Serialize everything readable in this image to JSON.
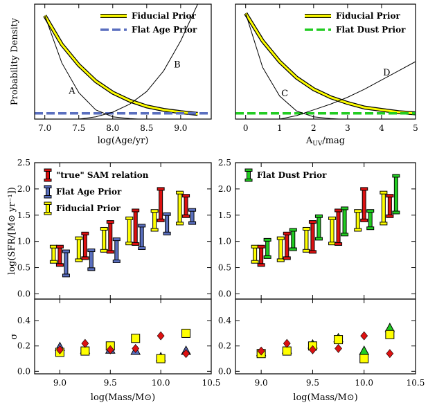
{
  "colors": {
    "fiducial": "#ffff00",
    "flat_age": "#5a6fbf",
    "flat_dust": "#22cc22",
    "sam_true": "#dd1111",
    "axis": "#000000"
  },
  "chart_data": [
    {
      "type": "line",
      "panel": "top-left",
      "xlabel": "log(Age/yr)",
      "ylabel": "Probability Density",
      "xlim": [
        6.85,
        9.45
      ],
      "ylim": [
        0,
        1
      ],
      "xticks": [
        7.0,
        7.5,
        8.0,
        8.5,
        9.0
      ],
      "xtick_labels": [
        "7.0",
        "7.5",
        "8.0",
        "8.5",
        "9.0"
      ],
      "legend_position": "top-right",
      "series": [
        {
          "name": "Fiducial Prior",
          "key": "fiducial",
          "style": "yellow-band",
          "x": [
            7.0,
            7.25,
            7.5,
            7.75,
            8.0,
            8.25,
            8.5,
            8.75,
            9.0,
            9.25
          ],
          "y": [
            0.9,
            0.65,
            0.47,
            0.33,
            0.23,
            0.16,
            0.11,
            0.08,
            0.06,
            0.045
          ]
        },
        {
          "name": "Flat Age Prior",
          "key": "flat_age",
          "style": "dashed",
          "x": [
            6.85,
            9.45
          ],
          "y": [
            0.05,
            0.05
          ]
        },
        {
          "name": "",
          "key": "A",
          "style": "thin",
          "x": [
            7.0,
            7.25,
            7.5,
            7.75,
            8.0,
            8.25,
            8.5,
            8.75,
            9.0,
            9.25
          ],
          "y": [
            0.9,
            0.49,
            0.23,
            0.08,
            0.02,
            0.005,
            -0.005,
            -0.01,
            -0.01,
            -0.01
          ]
        },
        {
          "name": "",
          "key": "B",
          "style": "thin",
          "x": [
            7.0,
            7.25,
            7.5,
            7.75,
            8.0,
            8.25,
            8.5,
            8.75,
            9.0,
            9.25
          ],
          "y": [
            -0.02,
            -0.01,
            0.0,
            0.02,
            0.06,
            0.13,
            0.24,
            0.42,
            0.68,
            1.0
          ]
        }
      ],
      "annotations": [
        {
          "text": "A",
          "x": 7.4,
          "y": 0.22
        },
        {
          "text": "B",
          "x": 8.95,
          "y": 0.45
        }
      ]
    },
    {
      "type": "line",
      "panel": "top-right",
      "xlabel": "A_UV/mag",
      "ylabel": "",
      "xlim": [
        -0.3,
        5.0
      ],
      "ylim": [
        0,
        1
      ],
      "xticks": [
        0,
        1,
        2,
        3,
        4,
        5
      ],
      "xtick_labels": [
        "0",
        "1",
        "2",
        "3",
        "4",
        "5"
      ],
      "legend_position": "top-right",
      "series": [
        {
          "name": "Fiducial Prior",
          "key": "fiducial",
          "style": "yellow-band",
          "x": [
            0,
            0.5,
            1.0,
            1.5,
            2.0,
            2.5,
            3.0,
            3.5,
            4.0,
            4.5,
            5.0
          ],
          "y": [
            0.92,
            0.68,
            0.5,
            0.36,
            0.26,
            0.19,
            0.14,
            0.1,
            0.08,
            0.06,
            0.05
          ]
        },
        {
          "name": "Flat Dust Prior",
          "key": "flat_dust",
          "style": "dashed",
          "x": [
            -0.3,
            5.0
          ],
          "y": [
            0.05,
            0.05
          ]
        },
        {
          "name": "",
          "key": "C",
          "style": "thin",
          "x": [
            0,
            0.5,
            1.0,
            1.5,
            2.0,
            2.5,
            3.0,
            3.5,
            4.0,
            4.5,
            5.0
          ],
          "y": [
            0.92,
            0.45,
            0.2,
            0.07,
            0.02,
            0.005,
            -0.005,
            -0.01,
            -0.01,
            -0.01,
            -0.01
          ]
        },
        {
          "name": "",
          "key": "D",
          "style": "thin",
          "x": [
            0,
            0.5,
            1.0,
            1.5,
            2.0,
            2.5,
            3.0,
            3.5,
            4.0,
            4.5,
            5.0
          ],
          "y": [
            -0.02,
            -0.01,
            0.0,
            0.03,
            0.08,
            0.13,
            0.19,
            0.26,
            0.34,
            0.42,
            0.5
          ]
        }
      ],
      "annotations": [
        {
          "text": "C",
          "x": 1.15,
          "y": 0.2
        },
        {
          "text": "D",
          "x": 4.15,
          "y": 0.38
        }
      ]
    },
    {
      "type": "errorbar",
      "panel": "middle-left",
      "xlabel": "",
      "ylabel": "log(SFR/[M⊙ yr⁻¹])",
      "xlim": [
        8.75,
        10.5
      ],
      "ylim": [
        -0.1,
        2.5
      ],
      "xticks": [
        9.0,
        9.5,
        10.0,
        10.5
      ],
      "yticks": [
        0.0,
        0.5,
        1.0,
        1.5,
        2.0,
        2.5
      ],
      "ytick_labels": [
        "0.0",
        "0.5",
        "1.0",
        "1.5",
        "2.0",
        "2.5"
      ],
      "legend_position": "top-left",
      "series": [
        {
          "name": "\"true\" SAM relation",
          "key": "sam_true",
          "x": [
            9.0,
            9.25,
            9.5,
            9.75,
            10.0,
            10.25
          ],
          "low": [
            0.55,
            0.68,
            0.8,
            0.95,
            1.4,
            1.48
          ],
          "high": [
            0.9,
            1.15,
            1.37,
            1.59,
            2.0,
            1.87
          ]
        },
        {
          "name": "Flat Age Prior",
          "key": "flat_age",
          "x": [
            9.0,
            9.25,
            9.5,
            9.75,
            10.0,
            10.25
          ],
          "low": [
            0.35,
            0.47,
            0.62,
            0.87,
            1.15,
            1.35
          ],
          "high": [
            0.81,
            0.83,
            1.04,
            1.3,
            1.52,
            1.6
          ]
        },
        {
          "name": "Fiducial Prior",
          "key": "fiducial",
          "x": [
            9.0,
            9.25,
            9.5,
            9.75,
            10.0,
            10.25
          ],
          "low": [
            0.61,
            0.64,
            0.82,
            0.96,
            1.22,
            1.34
          ],
          "high": [
            0.9,
            1.06,
            1.24,
            1.44,
            1.58,
            1.93
          ]
        }
      ]
    },
    {
      "type": "errorbar",
      "panel": "middle-right",
      "xlabel": "",
      "ylabel": "",
      "xlim": [
        8.75,
        10.5
      ],
      "ylim": [
        -0.1,
        2.5
      ],
      "xticks": [
        9.0,
        9.5,
        10.0,
        10.5
      ],
      "yticks": [
        0.0,
        0.5,
        1.0,
        1.5,
        2.0,
        2.5
      ],
      "ytick_labels": [
        "0.0",
        "0.5",
        "1.0",
        "1.5",
        "2.0",
        "2.5"
      ],
      "legend_position": "top-left",
      "series": [
        {
          "name": "Flat Dust Prior",
          "key": "flat_dust",
          "x": [
            9.0,
            9.25,
            9.5,
            9.75,
            10.0,
            10.25
          ],
          "low": [
            0.7,
            0.85,
            1.05,
            1.13,
            1.25,
            1.55
          ],
          "high": [
            1.03,
            1.22,
            1.48,
            1.63,
            1.58,
            2.25
          ]
        },
        {
          "name": "",
          "key": "sam_true",
          "x": [
            9.0,
            9.25,
            9.5,
            9.75,
            10.0,
            10.25
          ],
          "low": [
            0.55,
            0.68,
            0.8,
            0.95,
            1.4,
            1.48
          ],
          "high": [
            0.9,
            1.15,
            1.37,
            1.59,
            2.0,
            1.87
          ]
        },
        {
          "name": "",
          "key": "fiducial",
          "x": [
            9.0,
            9.25,
            9.5,
            9.75,
            10.0,
            10.25
          ],
          "low": [
            0.61,
            0.64,
            0.82,
            0.96,
            1.22,
            1.34
          ],
          "high": [
            0.9,
            1.06,
            1.24,
            1.44,
            1.58,
            1.93
          ]
        }
      ]
    },
    {
      "type": "scatter",
      "panel": "bottom-left",
      "xlabel": "log(Mass/M⊙)",
      "ylabel": "σ",
      "xlim": [
        8.75,
        10.5
      ],
      "ylim": [
        -0.02,
        0.57
      ],
      "xticks": [
        9.0,
        9.5,
        10.0,
        10.5
      ],
      "xtick_labels": [
        "9.0",
        "9.5",
        "10.0",
        "10.5"
      ],
      "yticks": [
        0.0,
        0.2,
        0.4
      ],
      "ytick_labels": [
        "0.0",
        "0.2",
        "0.4"
      ],
      "series": [
        {
          "key": "flat_age",
          "marker": "triangle",
          "x": [
            9.0,
            9.25,
            9.5,
            9.75,
            10.0,
            10.25
          ],
          "y": [
            0.19,
            0.17,
            0.17,
            0.16,
            0.11,
            0.16
          ]
        },
        {
          "key": "fiducial",
          "marker": "square",
          "x": [
            9.0,
            9.25,
            9.5,
            9.75,
            10.0,
            10.25
          ],
          "y": [
            0.15,
            0.16,
            0.2,
            0.26,
            0.1,
            0.3
          ]
        },
        {
          "key": "sam_true",
          "marker": "diamond",
          "x": [
            9.0,
            9.25,
            9.5,
            9.75,
            10.0,
            10.25
          ],
          "y": [
            0.17,
            0.22,
            0.17,
            0.18,
            0.28,
            0.14
          ]
        }
      ]
    },
    {
      "type": "scatter",
      "panel": "bottom-right",
      "xlabel": "log(Mass/M⊙)",
      "ylabel": "",
      "xlim": [
        8.75,
        10.5
      ],
      "ylim": [
        -0.02,
        0.57
      ],
      "xticks": [
        9.0,
        9.5,
        10.0,
        10.5
      ],
      "xtick_labels": [
        "9.0",
        "9.5",
        "10.0",
        "10.5"
      ],
      "yticks": [
        0.0,
        0.2,
        0.4
      ],
      "ytick_labels": [
        "0.0",
        "0.2",
        "0.4"
      ],
      "series": [
        {
          "key": "flat_dust",
          "marker": "triangle",
          "x": [
            9.0,
            9.25,
            9.5,
            9.75,
            10.0,
            10.25
          ],
          "y": [
            0.15,
            0.17,
            0.21,
            0.26,
            0.16,
            0.34
          ]
        },
        {
          "key": "fiducial",
          "marker": "square",
          "x": [
            9.0,
            9.25,
            9.5,
            9.75,
            10.0,
            10.25
          ],
          "y": [
            0.14,
            0.16,
            0.2,
            0.25,
            0.1,
            0.29
          ]
        },
        {
          "key": "sam_true",
          "marker": "diamond",
          "x": [
            9.0,
            9.25,
            9.5,
            9.75,
            10.0,
            10.25
          ],
          "y": [
            0.16,
            0.22,
            0.17,
            0.18,
            0.28,
            0.14
          ]
        }
      ]
    }
  ]
}
